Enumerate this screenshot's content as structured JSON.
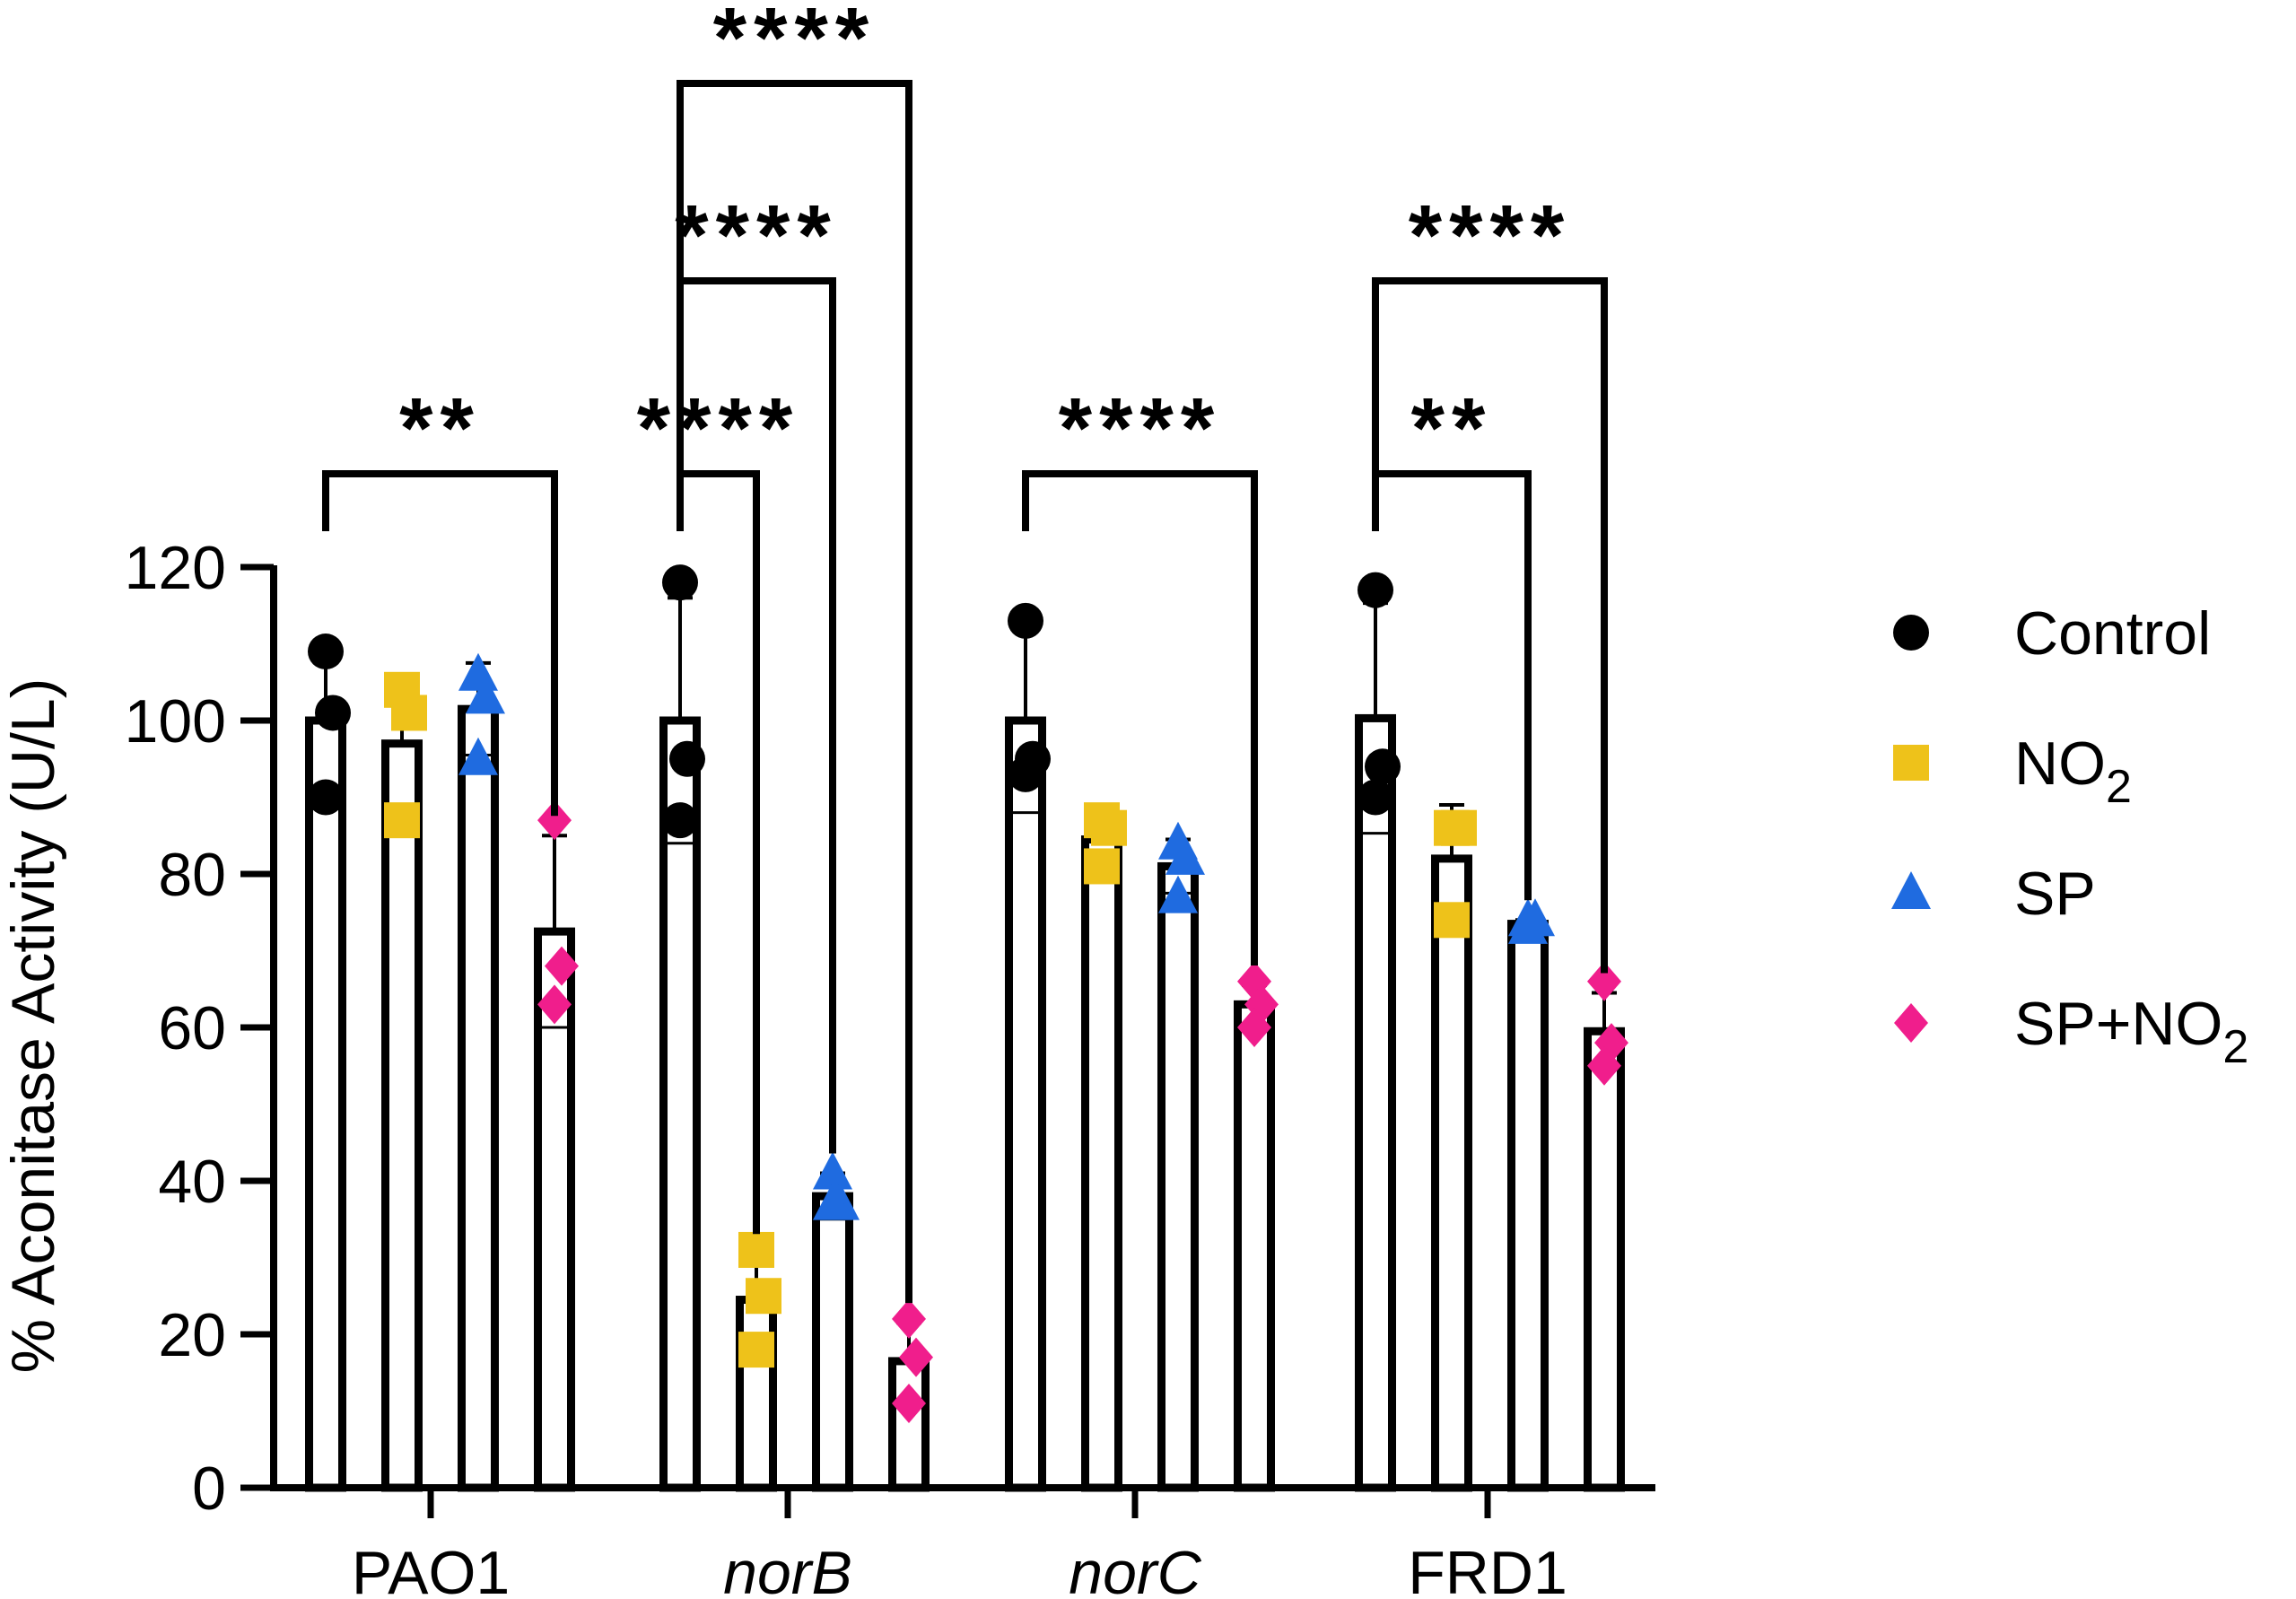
{
  "chart_data": {
    "type": "bar",
    "title": "",
    "xlabel": "",
    "ylabel": "% Aconitase Activity (U/L)",
    "ylim": [
      0,
      120
    ],
    "yticks": [
      0,
      20,
      40,
      60,
      80,
      100,
      120
    ],
    "categories": [
      "PAO1",
      "norB",
      "norC",
      "FRD1"
    ],
    "italic_categories": [
      "norB",
      "norC"
    ],
    "series": [
      {
        "name": "Control",
        "marker": "circle",
        "color": "#000000",
        "values": [
          100,
          100,
          100,
          100.3
        ],
        "errors": [
          9,
          16,
          12,
          15
        ],
        "points": [
          [
            109,
            101,
            90
          ],
          [
            118,
            95,
            87
          ],
          [
            113,
            95,
            93
          ],
          [
            117,
            94,
            90
          ]
        ]
      },
      {
        "name": "NO2",
        "label_main": "NO",
        "label_sub": "2",
        "marker": "square",
        "color": "#EEC21A",
        "values": [
          97,
          24.5,
          84.5,
          82
        ],
        "errors": [
          9,
          6,
          2.5,
          7
        ],
        "points": [
          [
            104,
            101,
            87
          ],
          [
            31,
            25,
            18
          ],
          [
            87,
            86,
            81
          ],
          [
            86,
            86,
            74
          ]
        ]
      },
      {
        "name": "SP",
        "marker": "triangle",
        "color": "#1F6BE0",
        "values": [
          101.5,
          38,
          81,
          73.5
        ],
        "errors": [
          6,
          3,
          3.5,
          0.5
        ],
        "points": [
          [
            106,
            103,
            95
          ],
          [
            41,
            37,
            37
          ],
          [
            84,
            82,
            77
          ],
          [
            74,
            74,
            73
          ]
        ]
      },
      {
        "name": "SP+NO2",
        "label_main": "SP+NO",
        "label_sub": "2",
        "marker": "diamond",
        "color": "#F01E8C",
        "values": [
          72.5,
          16.5,
          63,
          59.5
        ],
        "errors": [
          12.5,
          5,
          2.5,
          5
        ],
        "points": [
          [
            87,
            68,
            63
          ],
          [
            22,
            17,
            11
          ],
          [
            66,
            63,
            60
          ],
          [
            66,
            58,
            55
          ]
        ]
      }
    ],
    "significance": [
      {
        "group": 0,
        "from": 0,
        "to": 3,
        "label": "**"
      },
      {
        "group": 1,
        "from": 0,
        "to": 1,
        "label": "****"
      },
      {
        "group": 1,
        "from": 0,
        "to": 2,
        "label": "****"
      },
      {
        "group": 1,
        "from": 0,
        "to": 3,
        "label": "****"
      },
      {
        "group": 2,
        "from": 0,
        "to": 3,
        "label": "****"
      },
      {
        "group": 3,
        "from": 0,
        "to": 2,
        "label": "**"
      },
      {
        "group": 3,
        "from": 0,
        "to": 3,
        "label": "****"
      }
    ],
    "legend_position": "right"
  }
}
